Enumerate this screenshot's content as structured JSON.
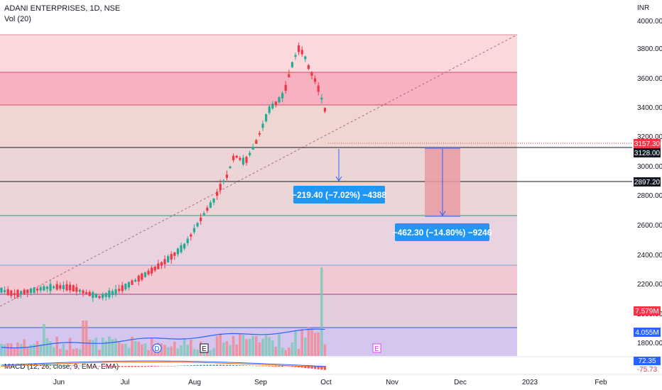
{
  "header": {
    "symbol_line": "ADANI ENTERPRISES, 1D, NSE",
    "volume_line": "Vol (20)",
    "macd_line": "MACD (12, 26, close, 9, EMA, EMA)"
  },
  "axis": {
    "currency": "INR",
    "y_ticks": [
      "4000.00",
      "3800.00",
      "3600.00",
      "3400.00",
      "3200.00",
      "3000.00",
      "2800.00",
      "2600.00",
      "2400.00",
      "2200.00",
      "2000.00",
      "1800.00"
    ],
    "x_ticks": [
      "Jun",
      "Jul",
      "Aug",
      "Sep",
      "Oct",
      "Nov",
      "Dec",
      "2023",
      "Feb"
    ]
  },
  "price_tags": [
    {
      "label": "3157.30",
      "color": "#f23645"
    },
    {
      "label": "3128.00",
      "color": "#131722"
    },
    {
      "label": "2897.20",
      "color": "#131722"
    },
    {
      "label": "7.579M",
      "color": "#f23645"
    },
    {
      "label": "4.055M",
      "color": "#2962ff"
    },
    {
      "label": "72.35",
      "color": "#2962ff"
    },
    {
      "label": "-75.73",
      "color": "#f23645"
    }
  ],
  "callouts": [
    {
      "text": "−219.40 (−7.02%) −4388",
      "color": "#2196f3"
    },
    {
      "text": "−462.30 (−14.80%) −9246",
      "color": "#2196f3"
    }
  ],
  "event_markers": [
    "D",
    "E",
    "E"
  ],
  "colors": {
    "up": "#22ab94",
    "down": "#f23645",
    "zone_red": "#f7a9b8",
    "zone_pink": "#fbd3d8",
    "zone_tan": "#eed6cf",
    "zone_mauve": "#e8d0dc",
    "zone_lavender": "#d6c4ee",
    "measure_box": "#eba7ad"
  },
  "chart_data": {
    "type": "candlestick",
    "title": "ADANI ENTERPRISES, 1D, NSE",
    "ylabel": "INR",
    "ylim": [
      1750,
      4050
    ],
    "x_range": [
      "2022-05-10",
      "2023-02-20"
    ],
    "last_price": 3157.3,
    "levels": [
      3128.0,
      2897.2
    ],
    "measurements": [
      {
        "from": 3128.0,
        "to": 2908.6,
        "change": -219.4,
        "pct": -7.02,
        "ticks": -4388
      },
      {
        "from": 3128.0,
        "to": 2665.7,
        "change": -462.3,
        "pct": -14.8,
        "ticks": -9246
      }
    ],
    "volume": {
      "last": "7.579M",
      "ma20": "4.055M"
    },
    "macd": {
      "macd": 72.35,
      "histogram": -75.73
    }
  }
}
